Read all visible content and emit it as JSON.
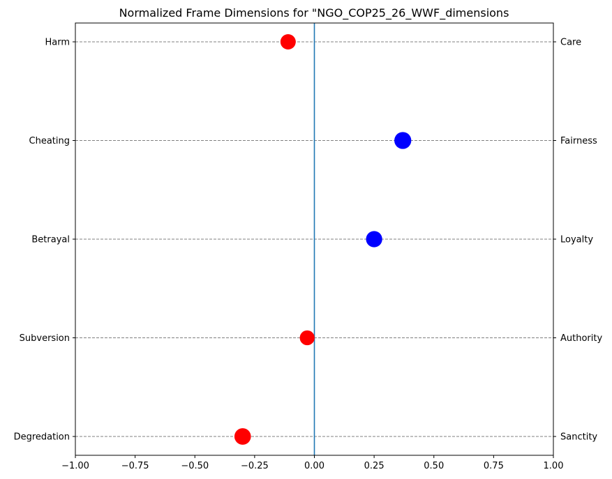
{
  "chart_data": {
    "type": "scatter",
    "title": "Normalized Frame Dimensions for \"NGO_COP25_26_WWF_dimensions",
    "xlabel": "",
    "ylabel": "",
    "xlim": [
      -1.0,
      1.0
    ],
    "x_ticks": [
      -1.0,
      -0.75,
      -0.5,
      -0.25,
      0.0,
      0.25,
      0.5,
      0.75,
      1.0
    ],
    "x_tick_labels": [
      "−1.00",
      "−0.75",
      "−0.50",
      "−0.25",
      "0.00",
      "0.25",
      "0.50",
      "0.75",
      "1.00"
    ],
    "left_labels": [
      "Harm",
      "Cheating",
      "Betrayal",
      "Subversion",
      "Degredation"
    ],
    "right_labels": [
      "Care",
      "Fairness",
      "Loyalty",
      "Authority",
      "Sanctity"
    ],
    "points": [
      {
        "x": -0.11,
        "color": "#ff0000"
      },
      {
        "x": 0.37,
        "color": "#0000ff"
      },
      {
        "x": 0.25,
        "color": "#0000ff"
      },
      {
        "x": -0.03,
        "color": "#ff0000"
      },
      {
        "x": -0.3,
        "color": "#ff0000"
      }
    ],
    "zero_line_color": "#1f77b4",
    "grid": "horizontal dashed",
    "grid_color": "#808080"
  }
}
